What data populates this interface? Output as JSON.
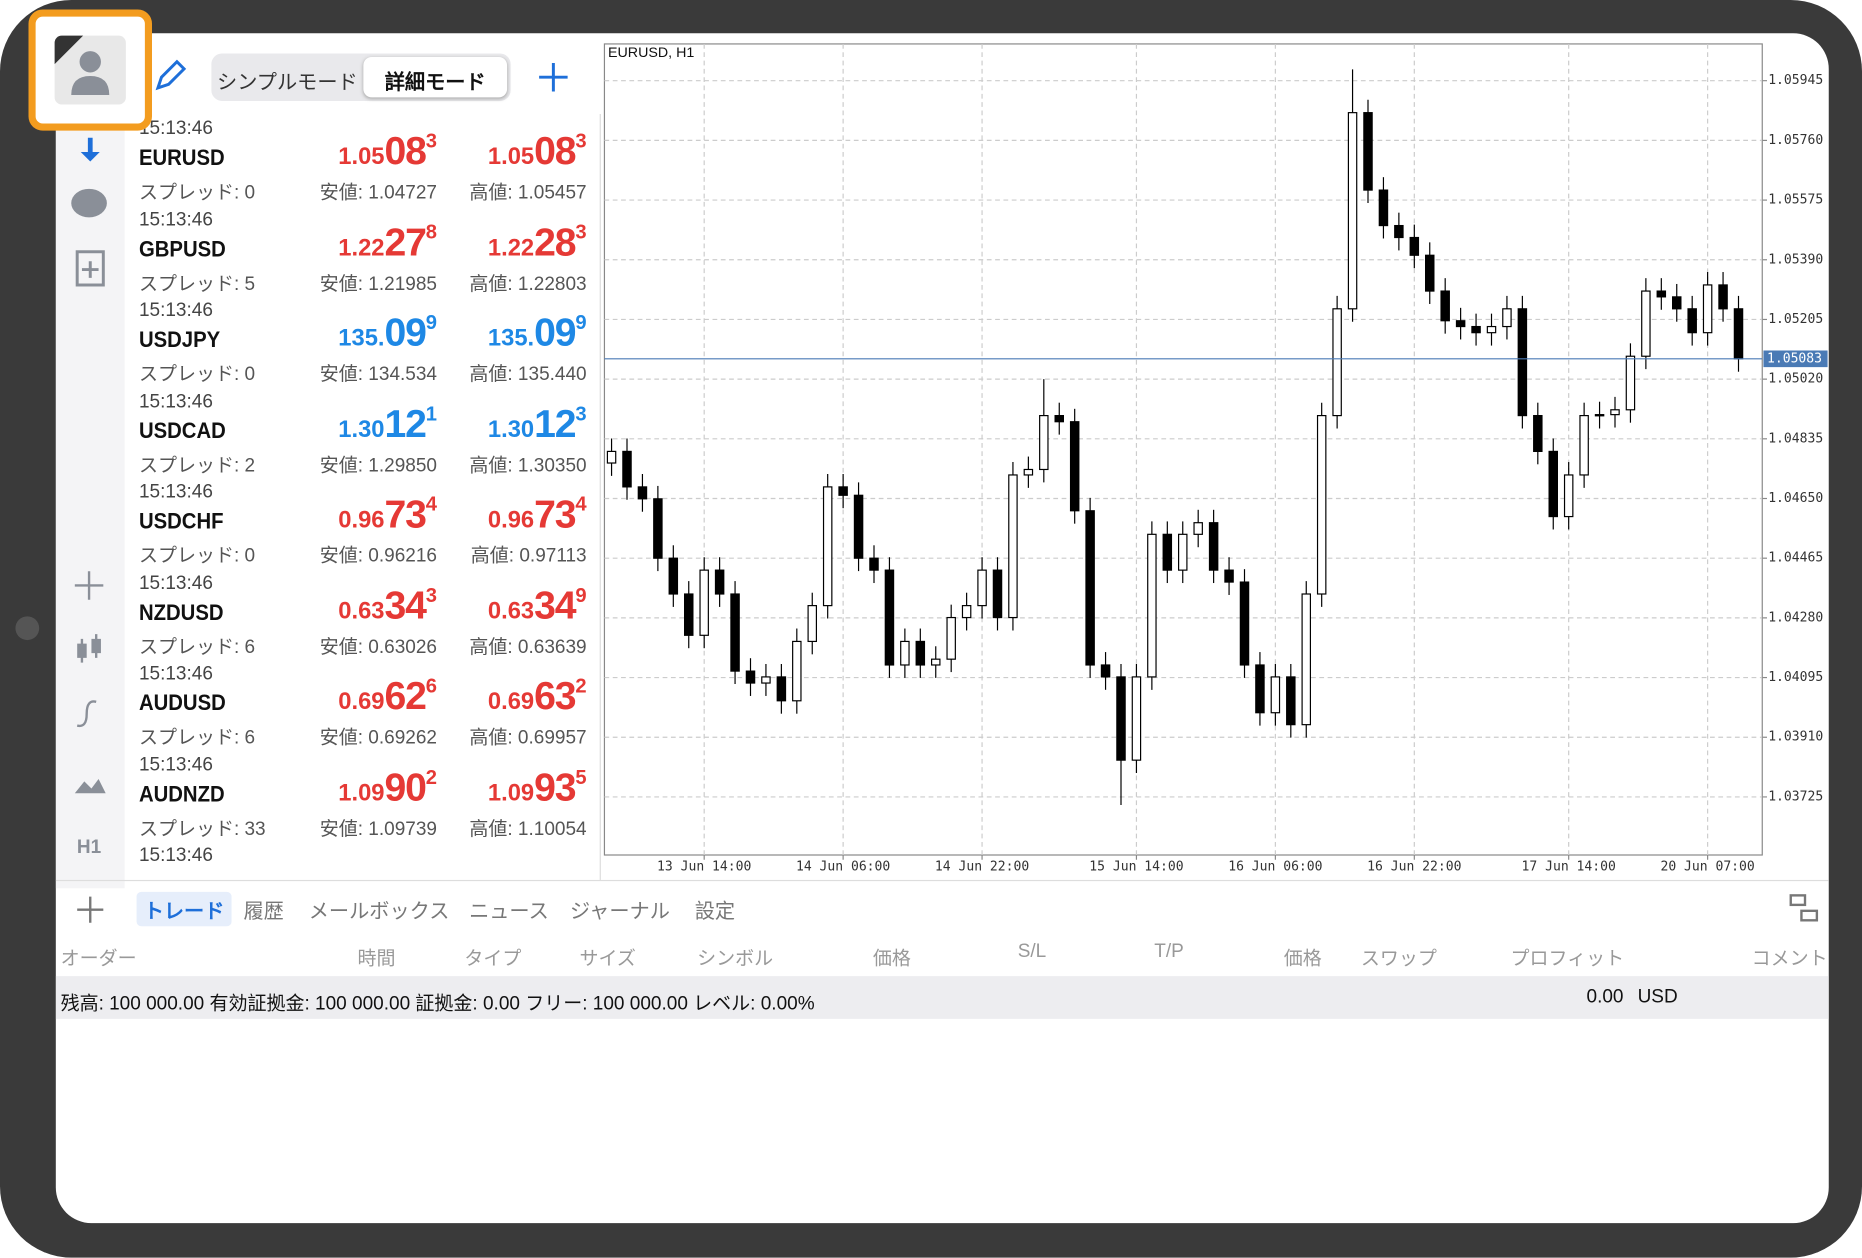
{
  "header": {
    "modes": [
      "シンプルモード",
      "詳細モード"
    ]
  },
  "sidebar": {
    "timeframe": "H1"
  },
  "quotes": [
    {
      "time": "15:13:46",
      "symbol": "EURUSD",
      "spread": "スプレッド: 0",
      "bid": [
        "1.05",
        "08",
        "3"
      ],
      "ask": [
        "1.05",
        "08",
        "3"
      ],
      "low": "安値: 1.04727",
      "high": "高値: 1.05457",
      "color": "#e53935"
    },
    {
      "time": "15:13:46",
      "symbol": "GBPUSD",
      "spread": "スプレッド: 5",
      "bid": [
        "1.22",
        "27",
        "8"
      ],
      "ask": [
        "1.22",
        "28",
        "3"
      ],
      "low": "安値: 1.21985",
      "high": "高値: 1.22803",
      "color": "#e53935"
    },
    {
      "time": "15:13:46",
      "symbol": "USDJPY",
      "spread": "スプレッド: 0",
      "bid": [
        "135.",
        "09",
        "9"
      ],
      "ask": [
        "135.",
        "09",
        "9"
      ],
      "low": "安値: 134.534",
      "high": "高値: 135.440",
      "color": "#1e88e5"
    },
    {
      "time": "15:13:46",
      "symbol": "USDCAD",
      "spread": "スプレッド: 2",
      "bid": [
        "1.30",
        "12",
        "1"
      ],
      "ask": [
        "1.30",
        "12",
        "3"
      ],
      "low": "安値: 1.29850",
      "high": "高値: 1.30350",
      "color": "#1e88e5"
    },
    {
      "time": "15:13:46",
      "symbol": "USDCHF",
      "spread": "スプレッド: 0",
      "bid": [
        "0.96",
        "73",
        "4"
      ],
      "ask": [
        "0.96",
        "73",
        "4"
      ],
      "low": "安値: 0.96216",
      "high": "高値: 0.97113",
      "color": "#e53935"
    },
    {
      "time": "15:13:46",
      "symbol": "NZDUSD",
      "spread": "スプレッド: 6",
      "bid": [
        "0.63",
        "34",
        "3"
      ],
      "ask": [
        "0.63",
        "34",
        "9"
      ],
      "low": "安値: 0.63026",
      "high": "高値: 0.63639",
      "color": "#e53935"
    },
    {
      "time": "15:13:46",
      "symbol": "AUDUSD",
      "spread": "スプレッド: 6",
      "bid": [
        "0.69",
        "62",
        "6"
      ],
      "ask": [
        "0.69",
        "63",
        "2"
      ],
      "low": "安値: 0.69262",
      "high": "高値: 0.69957",
      "color": "#e53935"
    },
    {
      "time": "15:13:46",
      "symbol": "AUDNZD",
      "spread": "スプレッド: 33",
      "bid": [
        "1.09",
        "90",
        "2"
      ],
      "ask": [
        "1.09",
        "93",
        "5"
      ],
      "low": "安値: 1.09739",
      "high": "高値: 1.10054",
      "color": "#e53935"
    }
  ],
  "partial_row_time": "15:13:46",
  "chart_data": {
    "type": "candlestick",
    "title": "EURUSD, H1",
    "up_color": "#ffffff",
    "down_color": "#000000",
    "grid": true,
    "categories": [
      null,
      null,
      null,
      null,
      null,
      null,
      "13 Jun 14:00",
      null,
      null,
      null,
      null,
      null,
      null,
      null,
      null,
      "14 Jun 06:00",
      null,
      null,
      null,
      null,
      null,
      null,
      null,
      null,
      "14 Jun 22:00",
      null,
      null,
      null,
      null,
      null,
      null,
      null,
      null,
      null,
      "15 Jun 14:00",
      null,
      null,
      null,
      null,
      null,
      null,
      null,
      null,
      "16 Jun 06:00",
      null,
      null,
      null,
      null,
      null,
      null,
      null,
      null,
      "16 Jun 22:00",
      null,
      null,
      null,
      null,
      null,
      null,
      null,
      null,
      null,
      "17 Jun 14:00",
      null,
      null,
      null,
      null,
      null,
      null,
      null,
      null,
      "20 Jun 07:00",
      null,
      null
    ],
    "open": [
      1.0476,
      1.04796,
      1.04686,
      1.04649,
      1.04465,
      1.04354,
      1.04226,
      1.04428,
      1.04354,
      1.04115,
      1.04078,
      1.04097,
      1.04023,
      1.04207,
      1.04318,
      1.04686,
      1.0466,
      1.04465,
      1.04428,
      1.04134,
      1.04207,
      1.04134,
      1.04152,
      1.04281,
      1.04318,
      1.04428,
      1.04281,
      1.04723,
      1.0474,
      1.04907,
      1.04888,
      1.04612,
      1.04134,
      1.04097,
      1.03839,
      1.04097,
      1.04539,
      1.04428,
      1.04539,
      1.04575,
      1.04428,
      1.04391,
      1.04134,
      1.03986,
      1.04097,
      1.03949,
      1.04354,
      1.04907,
      1.05238,
      1.05846,
      1.05606,
      1.05496,
      1.05459,
      1.05404,
      1.05293,
      1.05201,
      1.05183,
      1.05164,
      1.05183,
      1.05238,
      1.04907,
      1.04796,
      1.04594,
      1.04723,
      1.04907,
      1.0491,
      1.04925,
      1.05091,
      1.05293,
      1.05275,
      1.05238,
      1.05164,
      1.05312,
      1.05238
    ],
    "high": [
      1.04836,
      1.04836,
      1.04726,
      1.04689,
      1.04505,
      1.04394,
      1.04468,
      1.04468,
      1.04394,
      1.04155,
      1.04137,
      1.04137,
      1.04247,
      1.04358,
      1.04726,
      1.04726,
      1.047,
      1.04505,
      1.04468,
      1.04247,
      1.04247,
      1.04192,
      1.04321,
      1.04358,
      1.04468,
      1.04468,
      1.04763,
      1.0478,
      1.0502,
      1.04947,
      1.04928,
      1.04652,
      1.04174,
      1.04137,
      1.04137,
      1.04579,
      1.04579,
      1.04579,
      1.04615,
      1.04615,
      1.04468,
      1.04431,
      1.04174,
      1.04137,
      1.04137,
      1.04394,
      1.04947,
      1.05278,
      1.0598,
      1.05886,
      1.05646,
      1.05536,
      1.05499,
      1.05444,
      1.05333,
      1.05241,
      1.05223,
      1.05223,
      1.05278,
      1.05278,
      1.04947,
      1.04836,
      1.04763,
      1.04947,
      1.0495,
      1.04965,
      1.05131,
      1.05333,
      1.05333,
      1.05315,
      1.05278,
      1.05352,
      1.05352,
      1.05278
    ],
    "low": [
      1.0472,
      1.04646,
      1.04609,
      1.04425,
      1.04314,
      1.04186,
      1.04186,
      1.04314,
      1.04075,
      1.04038,
      1.04038,
      1.03983,
      1.03983,
      1.04167,
      1.04278,
      1.0462,
      1.04425,
      1.04388,
      1.04094,
      1.04094,
      1.04094,
      1.04094,
      1.04112,
      1.04241,
      1.04278,
      1.04241,
      1.04241,
      1.04683,
      1.047,
      1.04848,
      1.04572,
      1.04094,
      1.04057,
      1.037,
      1.03799,
      1.04057,
      1.04388,
      1.04388,
      1.04499,
      1.04388,
      1.04351,
      1.04094,
      1.03946,
      1.03946,
      1.03909,
      1.03909,
      1.04314,
      1.04867,
      1.05198,
      1.05566,
      1.05456,
      1.05419,
      1.05364,
      1.05253,
      1.05161,
      1.05143,
      1.05124,
      1.05124,
      1.05143,
      1.04867,
      1.04756,
      1.04554,
      1.04554,
      1.04683,
      1.04867,
      1.0487,
      1.04885,
      1.05051,
      1.05235,
      1.05198,
      1.05124,
      1.05124,
      1.05198,
      1.05043
    ],
    "close": [
      1.04796,
      1.04686,
      1.04649,
      1.04465,
      1.04354,
      1.04226,
      1.04428,
      1.04354,
      1.04115,
      1.04078,
      1.04097,
      1.04023,
      1.04207,
      1.04318,
      1.04686,
      1.0466,
      1.04465,
      1.04428,
      1.04134,
      1.04207,
      1.04134,
      1.04152,
      1.04281,
      1.04318,
      1.04428,
      1.04281,
      1.04723,
      1.0474,
      1.04907,
      1.04888,
      1.04612,
      1.04134,
      1.04097,
      1.03839,
      1.04097,
      1.04539,
      1.04428,
      1.04539,
      1.04575,
      1.04428,
      1.04391,
      1.04134,
      1.03986,
      1.04097,
      1.03949,
      1.04354,
      1.04907,
      1.05238,
      1.05846,
      1.05606,
      1.05496,
      1.05459,
      1.05404,
      1.05293,
      1.05201,
      1.05183,
      1.05164,
      1.05183,
      1.05238,
      1.04907,
      1.04796,
      1.04594,
      1.04723,
      1.04907,
      1.0491,
      1.04925,
      1.05091,
      1.05293,
      1.05275,
      1.05238,
      1.05164,
      1.05312,
      1.05238,
      1.05083
    ],
    "current_price": 1.05083,
    "current_price_color": "#4a7ab5",
    "ylim": [
      1.03545,
      1.06059
    ],
    "yticks": [
      1.05945,
      {
        "value": 1.0576,
        "label": "1.05760"
      },
      1.05575,
      {
        "value": 1.0539,
        "label": "1.05390"
      },
      1.05205,
      {
        "value": 1.0502,
        "label": "1.05020"
      },
      1.04835,
      {
        "value": 1.0465,
        "label": "1.04650"
      },
      1.04465,
      {
        "value": 1.0428,
        "label": "1.04280"
      },
      1.04095,
      {
        "value": 1.0391,
        "label": "1.03910"
      },
      1.03725
    ]
  },
  "bottom": {
    "tabs": [
      "トレード",
      "履歴",
      "メールボックス",
      "ニュース",
      "ジャーナル",
      "設定"
    ],
    "columns": [
      "オーダー",
      "時間",
      "タイプ",
      "サイズ",
      "シンボル",
      "価格",
      "S/L",
      "T/P",
      "価格",
      "スワップ",
      "プロフィット",
      "コメント"
    ],
    "status": "残高: 100 000.00 有効証拠金: 100 000.00 証拠金: 0.00 フリー: 100 000.00 レベル: 0.00%",
    "profit": "0.00",
    "currency": "USD"
  }
}
